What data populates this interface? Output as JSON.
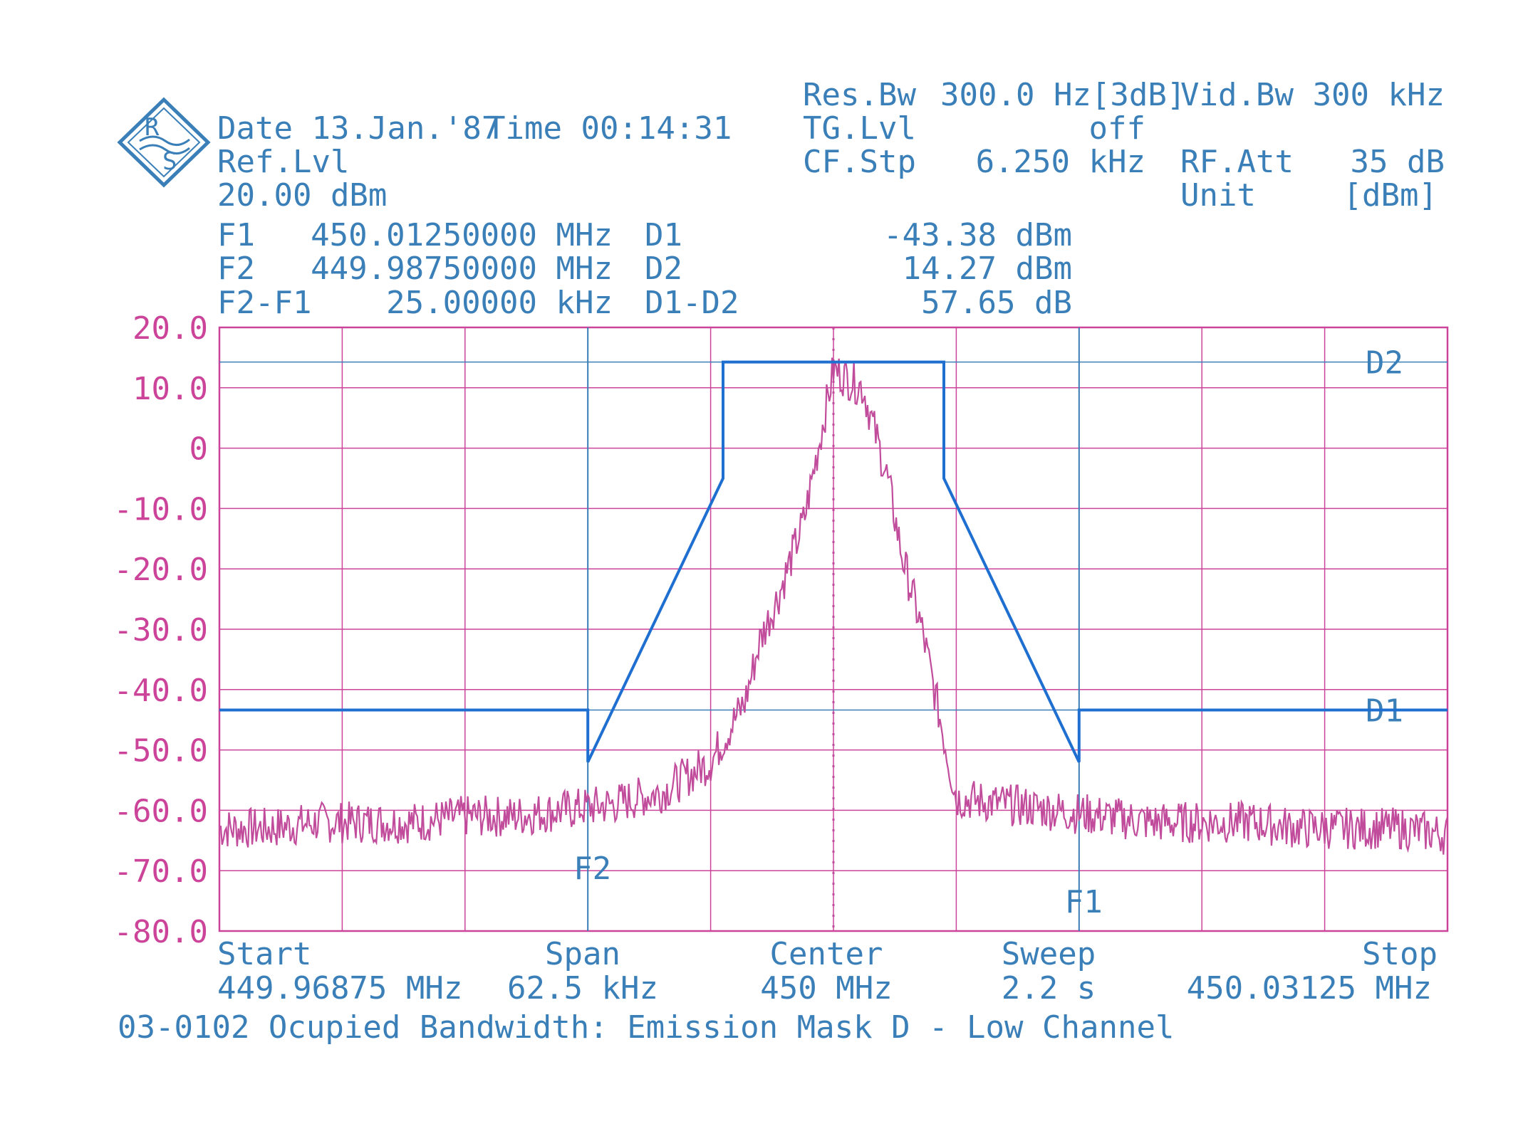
{
  "colors": {
    "grid": "#cc4499",
    "trace": "#c24c9c",
    "mask": "#1f6fd1",
    "text_blue": "#3a7fb8",
    "text_pink": "#cc4499"
  },
  "header": {
    "date": "Date 13.Jan.'87",
    "time": "Time 00:14:31",
    "ref_lvl_label": "Ref.Lvl",
    "ref_lvl_value": "20.00 dBm",
    "res_bw_label": "Res.Bw",
    "res_bw_value": "300.0 Hz[3dB]",
    "tg_lvl_label": "TG.Lvl",
    "tg_lvl_value": "off",
    "cf_stp_label": "CF.Stp",
    "cf_stp_value": "6.250 kHz",
    "vid_bw_label": "Vid.Bw",
    "vid_bw_value": "300 kHz",
    "rf_att_label": "RF.Att",
    "rf_att_value": "35 dB",
    "unit_label": "Unit",
    "unit_value": "[dBm]"
  },
  "markers": {
    "f1_label": "F1",
    "f1_value": "450.01250000 MHz",
    "f2_label": "F2",
    "f2_value": "449.98750000 MHz",
    "f2f1_label": "F2-F1",
    "f2f1_value": "25.00000 kHz",
    "d1_label": "D1",
    "d1_value": "-43.38 dBm",
    "d2_label": "D2",
    "d2_value": "14.27 dBm",
    "d1d2_label": "D1-D2",
    "d1d2_value": "57.65 dB"
  },
  "footer": {
    "start_label": "Start",
    "start_value": "449.96875 MHz",
    "span_label": "Span",
    "span_value": "62.5 kHz",
    "center_label": "Center",
    "center_value": "450 MHz",
    "sweep_label": "Sweep",
    "sweep_value": "2.2 s",
    "stop_label": "Stop",
    "stop_value": "450.03125 MHz",
    "caption": "03-0102 Ocupied Bandwidth: Emission Mask D - Low Channel"
  },
  "chart_data": {
    "type": "line",
    "x_unit": "MHz",
    "y_unit": "dBm",
    "xlim": [
      449.96875,
      450.03125
    ],
    "ylim": [
      -80,
      20
    ],
    "y_ticks": [
      20,
      10,
      0,
      -10,
      -20,
      -30,
      -40,
      -50,
      -60,
      -70,
      -80
    ],
    "y_tick_labels": [
      "20.0",
      "10.0",
      "0",
      "-10.0",
      "-20.0",
      "-30.0",
      "-40.0",
      "-50.0",
      "-60.0",
      "-70.0",
      "-80.0"
    ],
    "grid": true,
    "reference_lines": [
      {
        "name": "D2",
        "y": 14.27
      },
      {
        "name": "D1",
        "y": -43.38
      }
    ],
    "marker_lines": [
      {
        "name": "F2",
        "x": 449.9875
      },
      {
        "name": "F1",
        "x": 450.0125
      }
    ],
    "center_line_x": 450.0,
    "mask": {
      "x": [
        449.96875,
        449.9875,
        449.9875,
        449.99438,
        449.99438,
        450.00562,
        450.00562,
        450.0125,
        450.0125,
        450.03125
      ],
      "y": [
        -43.38,
        -43.38,
        -52.0,
        -5.0,
        14.27,
        14.27,
        -5.0,
        -52.0,
        -43.38,
        -43.38
      ]
    },
    "series": [
      {
        "x": [
          449.96875,
          449.97125,
          449.97375,
          449.97625,
          449.97875,
          449.98125,
          449.98375,
          449.98625,
          449.98875,
          449.99125,
          449.99375,
          449.9955,
          449.99625,
          449.99725,
          449.9985,
          450.0,
          450.0015,
          450.00275,
          450.0035,
          450.0045,
          450.00625,
          450.00875,
          450.01125,
          450.01375,
          450.01625,
          450.01875,
          450.02125,
          450.02375,
          450.02625,
          450.02875,
          450.03125
        ],
        "y": [
          -63,
          -63,
          -62,
          -62,
          -62,
          -61,
          -61,
          -60,
          -59,
          -57,
          -52,
          -42,
          -32,
          -24,
          -12,
          13,
          10,
          -5,
          -18,
          -30,
          -58,
          -59,
          -60,
          -61,
          -62,
          -62,
          -62,
          -63,
          -63,
          -63,
          -64
        ]
      }
    ]
  }
}
